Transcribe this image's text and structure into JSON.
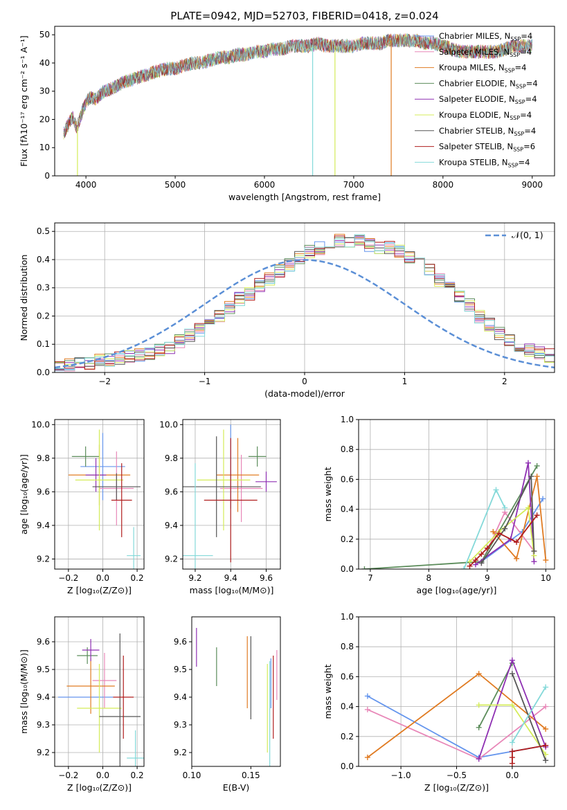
{
  "figure": {
    "title": "PLATE=0942, MJD=52703, FIBERID=0418, z=0.024"
  },
  "colors": {
    "Chabrier MILES": "#6495ed",
    "Salpeter MILES": "#e887b8",
    "Kroupa MILES": "#e07b22",
    "Chabrier ELODIE": "#5b8c5a",
    "Salpeter ELODIE": "#8e2fb2",
    "Kroupa ELODIE": "#d4ec58",
    "Chabrier STELIB": "#555555",
    "Salpeter STELIB": "#b01d1d",
    "Kroupa STELIB": "#84d9d9",
    "normal_curve": "#5b8fd6",
    "grid": "#b0b0b0"
  },
  "chart_data": [
    {
      "id": "spectrum",
      "type": "line",
      "xlabel": "wavelength [Angstrom, rest frame]",
      "ylabel": "Flux [fλ10⁻¹⁷ erg cm⁻² s⁻¹ A⁻¹]",
      "xlim": [
        3650,
        9250
      ],
      "ylim": [
        0,
        53
      ],
      "xticks": [
        4000,
        5000,
        6000,
        7000,
        8000,
        9000
      ],
      "yticks": [
        0,
        10,
        20,
        30,
        40,
        50
      ],
      "grid": false,
      "legend_position": "right",
      "x": [
        3750,
        3800,
        3850,
        3900,
        3950,
        4000,
        4050,
        4100,
        4200,
        4300,
        4400,
        4500,
        4600,
        4700,
        4800,
        4900,
        5000,
        5100,
        5200,
        5300,
        5400,
        5500,
        5600,
        5700,
        5800,
        5900,
        6000,
        6100,
        6200,
        6300,
        6400,
        6500,
        6600,
        6700,
        6800,
        6900,
        7000,
        7100,
        7200,
        7300,
        7400,
        7500,
        7600,
        7700,
        7800,
        7900,
        8000,
        8200,
        8400,
        8600,
        8800,
        9000
      ],
      "flux": [
        15,
        18,
        21,
        17,
        22,
        26,
        28,
        27,
        30,
        31,
        33,
        34,
        35,
        36,
        37,
        38,
        38,
        39,
        40,
        40,
        41,
        42,
        42,
        43,
        43,
        44,
        44,
        45,
        45,
        46,
        46,
        46,
        47,
        46,
        46,
        46,
        46,
        47,
        47,
        47,
        48,
        48,
        48,
        48,
        47,
        47,
        46,
        44,
        44,
        44,
        46,
        46
      ],
      "series": [
        {
          "name": "Chabrier MILES, N_SSP=4",
          "n_ssp": 4
        },
        {
          "name": "Salpeter MILES, N_SSP=4",
          "n_ssp": 4
        },
        {
          "name": "Kroupa MILES, N_SSP=4",
          "n_ssp": 4
        },
        {
          "name": "Chabrier ELODIE, N_SSP=4",
          "n_ssp": 4
        },
        {
          "name": "Salpeter ELODIE, N_SSP=4",
          "n_ssp": 4
        },
        {
          "name": "Kroupa ELODIE, N_SSP=4",
          "n_ssp": 4
        },
        {
          "name": "Chabrier STELIB, N_SSP=4",
          "n_ssp": 4
        },
        {
          "name": "Salpeter STELIB, N_SSP=6",
          "n_ssp": 6
        },
        {
          "name": "Kroupa STELIB, N_SSP=4",
          "n_ssp": 4
        }
      ]
    },
    {
      "id": "residuals",
      "type": "histogram",
      "xlabel": "(data-model)/error",
      "ylabel": "Normed distribution",
      "xlim": [
        -2.5,
        2.5
      ],
      "ylim": [
        0,
        0.53
      ],
      "xticks": [
        -2,
        -1,
        0,
        1,
        2
      ],
      "yticks": [
        0.0,
        0.1,
        0.2,
        0.3,
        0.4,
        0.5
      ],
      "grid": true,
      "legend": "𝒩(0, 1)",
      "legend_position": "top-right",
      "bin_width": 0.1,
      "bin_start": -2.5,
      "base_heights": [
        0.02,
        0.03,
        0.03,
        0.035,
        0.04,
        0.045,
        0.05,
        0.055,
        0.06,
        0.07,
        0.08,
        0.09,
        0.11,
        0.13,
        0.15,
        0.17,
        0.2,
        0.23,
        0.26,
        0.28,
        0.31,
        0.33,
        0.36,
        0.38,
        0.41,
        0.43,
        0.44,
        0.46,
        0.47,
        0.46,
        0.47,
        0.45,
        0.44,
        0.44,
        0.43,
        0.41,
        0.4,
        0.37,
        0.33,
        0.3,
        0.27,
        0.24,
        0.2,
        0.17,
        0.14,
        0.11,
        0.09,
        0.08,
        0.07,
        0.06,
        0.05,
        0.045,
        0.04,
        0.035,
        0.03,
        0.03,
        0.025,
        0.02,
        0.02,
        0.02
      ],
      "normal_curve": {
        "mu": 0,
        "sigma": 1
      }
    },
    {
      "id": "age_vs_Z",
      "type": "errorbar",
      "xlabel": "Z [log₁₀(Z/Z⊙)]",
      "ylabel": "age  [log₁₀(age/yr)]",
      "xlim": [
        -0.28,
        0.24
      ],
      "ylim": [
        9.14,
        10.03
      ],
      "xticks": [
        -0.2,
        0.0,
        0.2
      ],
      "yticks": [
        9.2,
        9.4,
        9.6,
        9.8,
        10.0
      ],
      "grid": true,
      "points": [
        {
          "series": "Chabrier MILES",
          "x": 0.0,
          "xerr": 0.13,
          "y": 9.75,
          "yerr": 0.2
        },
        {
          "series": "Salpeter MILES",
          "x": 0.08,
          "xerr": 0.1,
          "y": 9.62,
          "yerr": 0.22
        },
        {
          "series": "Kroupa MILES",
          "x": -0.02,
          "xerr": 0.18,
          "y": 9.7,
          "yerr": 0.18
        },
        {
          "series": "Chabrier ELODIE",
          "x": -0.1,
          "xerr": 0.08,
          "y": 9.81,
          "yerr": 0.06
        },
        {
          "series": "Salpeter ELODIE",
          "x": -0.04,
          "xerr": 0.06,
          "y": 9.7,
          "yerr": 0.1
        },
        {
          "series": "Kroupa ELODIE",
          "x": -0.02,
          "xerr": 0.14,
          "y": 9.67,
          "yerr": 0.3
        },
        {
          "series": "Chabrier STELIB",
          "x": 0.08,
          "xerr": 0.14,
          "y": 9.63,
          "yerr": 0.08
        },
        {
          "series": "Salpeter STELIB",
          "x": 0.11,
          "xerr": 0.06,
          "y": 9.55,
          "yerr": 0.22
        },
        {
          "series": "Kroupa STELIB",
          "x": 0.18,
          "xerr": 0.04,
          "y": 9.22,
          "yerr": 0.17
        }
      ]
    },
    {
      "id": "age_vs_mass",
      "type": "errorbar",
      "xlabel": "mass [log₁₀(M/M⊙)]",
      "ylabel": "",
      "xlim": [
        9.13,
        9.68
      ],
      "ylim": [
        9.14,
        10.03
      ],
      "xticks": [
        9.2,
        9.4,
        9.6
      ],
      "yticks": [
        9.2,
        9.4,
        9.6,
        9.8,
        10.0
      ],
      "grid": true,
      "points": [
        {
          "series": "Chabrier MILES",
          "x": 9.4,
          "xerr": 0.0,
          "y": 9.75,
          "yerr": 0.25
        },
        {
          "series": "Salpeter MILES",
          "x": 9.46,
          "xerr": 0.12,
          "y": 9.62,
          "yerr": 0.2
        },
        {
          "series": "Kroupa MILES",
          "x": 9.44,
          "xerr": 0.12,
          "y": 9.7,
          "yerr": 0.22
        },
        {
          "series": "Chabrier ELODIE",
          "x": 9.55,
          "xerr": 0.05,
          "y": 9.81,
          "yerr": 0.06
        },
        {
          "series": "Salpeter ELODIE",
          "x": 9.6,
          "xerr": 0.06,
          "y": 9.66,
          "yerr": 0.06
        },
        {
          "series": "Kroupa ELODIE",
          "x": 9.36,
          "xerr": 0.15,
          "y": 9.67,
          "yerr": 0.3
        },
        {
          "series": "Chabrier STELIB",
          "x": 9.32,
          "xerr": 0.25,
          "y": 9.63,
          "yerr": 0.3
        },
        {
          "series": "Salpeter STELIB",
          "x": 9.4,
          "xerr": 0.15,
          "y": 9.55,
          "yerr": 0.37
        },
        {
          "series": "Kroupa STELIB",
          "x": 9.2,
          "xerr": 0.1,
          "y": 9.22,
          "yerr": 0.55
        }
      ]
    },
    {
      "id": "weight_vs_age",
      "type": "line",
      "xlabel": "age  [log₁₀(age/yr)]",
      "ylabel": "mass weight",
      "xlim": [
        6.8,
        10.15
      ],
      "ylim": [
        0,
        1.0
      ],
      "xticks": [
        7,
        8,
        9,
        10
      ],
      "yticks": [
        0.0,
        0.2,
        0.4,
        0.6,
        0.8,
        1.0
      ],
      "grid": true,
      "series": [
        {
          "name": "Chabrier MILES",
          "x": [
            8.9,
            9.6,
            9.95
          ],
          "y": [
            0.05,
            0.25,
            0.47
          ]
        },
        {
          "name": "Salpeter MILES",
          "x": [
            8.9,
            9.3,
            9.8
          ],
          "y": [
            0.04,
            0.38,
            0.12
          ]
        },
        {
          "name": "Kroupa MILES",
          "x": [
            9.1,
            9.5,
            9.85,
            10.0
          ],
          "y": [
            0.25,
            0.07,
            0.62,
            0.06
          ]
        },
        {
          "name": "Chabrier ELODIE",
          "x": [
            6.9,
            8.9,
            9.85
          ],
          "y": [
            0.0,
            0.05,
            0.69
          ]
        },
        {
          "name": "Salpeter ELODIE",
          "x": [
            8.8,
            9.4,
            9.7,
            9.8
          ],
          "y": [
            0.03,
            0.2,
            0.71,
            0.05
          ]
        },
        {
          "name": "Kroupa ELODIE",
          "x": [
            8.7,
            9.2,
            9.7,
            9.8
          ],
          "y": [
            0.05,
            0.25,
            0.41,
            0.09
          ]
        },
        {
          "name": "Chabrier STELIB",
          "x": [
            8.9,
            9.3,
            9.75,
            9.8
          ],
          "y": [
            0.04,
            0.27,
            0.62,
            0.12
          ]
        },
        {
          "name": "Salpeter STELIB",
          "x": [
            8.7,
            8.8,
            8.9,
            9.0,
            9.2,
            9.5,
            9.85
          ],
          "y": [
            0.02,
            0.06,
            0.1,
            0.14,
            0.24,
            0.18,
            0.36
          ]
        },
        {
          "name": "Kroupa STELIB",
          "x": [
            8.6,
            9.15,
            9.3
          ],
          "y": [
            0.0,
            0.53,
            0.41
          ]
        }
      ]
    },
    {
      "id": "mass_vs_Z",
      "type": "errorbar",
      "xlabel": "Z [log₁₀(Z/Z⊙)]",
      "ylabel": "mass [log₁₀(M/M⊙)]",
      "xlim": [
        -0.28,
        0.24
      ],
      "ylim": [
        9.15,
        9.69
      ],
      "xticks": [
        -0.2,
        0.0,
        0.2
      ],
      "yticks": [
        9.2,
        9.3,
        9.4,
        9.5,
        9.6
      ],
      "grid": true,
      "points": [
        {
          "series": "Chabrier MILES",
          "x": -0.1,
          "xerr": 0.16,
          "y": 9.4,
          "yerr": 0.0
        },
        {
          "series": "Salpeter MILES",
          "x": 0.01,
          "xerr": 0.07,
          "y": 9.46,
          "yerr": 0.1
        },
        {
          "series": "Kroupa MILES",
          "x": -0.07,
          "xerr": 0.14,
          "y": 9.44,
          "yerr": 0.1
        },
        {
          "series": "Chabrier ELODIE",
          "x": -0.09,
          "xerr": 0.06,
          "y": 9.55,
          "yerr": 0.03
        },
        {
          "series": "Salpeter ELODIE",
          "x": -0.07,
          "xerr": 0.05,
          "y": 9.57,
          "yerr": 0.04
        },
        {
          "series": "Kroupa ELODIE",
          "x": -0.02,
          "xerr": 0.13,
          "y": 9.36,
          "yerr": 0.16
        },
        {
          "series": "Chabrier STELIB",
          "x": 0.1,
          "xerr": 0.12,
          "y": 9.33,
          "yerr": 0.3
        },
        {
          "series": "Salpeter STELIB",
          "x": 0.12,
          "xerr": 0.06,
          "y": 9.4,
          "yerr": 0.15
        },
        {
          "series": "Kroupa STELIB",
          "x": 0.19,
          "xerr": 0.05,
          "y": 9.18,
          "yerr": 0.1
        }
      ]
    },
    {
      "id": "mass_vs_EBV",
      "type": "errorbar",
      "xlabel": "E(B-V)",
      "ylabel": "",
      "xlim": [
        0.1,
        0.175
      ],
      "ylim": [
        9.15,
        9.69
      ],
      "xticks": [
        0.1,
        0.15
      ],
      "yticks": [
        9.2,
        9.3,
        9.4,
        9.5,
        9.6
      ],
      "grid": false,
      "points": [
        {
          "series": "Salpeter ELODIE",
          "x": 0.104,
          "xerr": 0,
          "y": 9.58,
          "yerr": 0.07
        },
        {
          "series": "Chabrier ELODIE",
          "x": 0.121,
          "xerr": 0,
          "y": 9.51,
          "yerr": 0.07
        },
        {
          "series": "Kroupa MILES",
          "x": 0.147,
          "xerr": 0,
          "y": 9.49,
          "yerr": 0.13
        },
        {
          "series": "Chabrier STELIB",
          "x": 0.15,
          "xerr": 0,
          "y": 9.47,
          "yerr": 0.15
        },
        {
          "series": "Kroupa ELODIE",
          "x": 0.164,
          "xerr": 0,
          "y": 9.36,
          "yerr": 0.16
        },
        {
          "series": "Kroupa STELIB",
          "x": 0.166,
          "xerr": 0,
          "y": 9.34,
          "yerr": 0.19
        },
        {
          "series": "Chabrier MILES",
          "x": 0.167,
          "xerr": 0,
          "y": 9.45,
          "yerr": 0.09
        },
        {
          "series": "Salpeter STELIB",
          "x": 0.169,
          "xerr": 0,
          "y": 9.4,
          "yerr": 0.15
        },
        {
          "series": "Salpeter MILES",
          "x": 0.172,
          "xerr": 0,
          "y": 9.48,
          "yerr": 0.09
        }
      ]
    },
    {
      "id": "weight_vs_Z",
      "type": "line",
      "xlabel": "Z [log₁₀(Z/Z⊙)]",
      "ylabel": "mass weight",
      "xlim": [
        -1.38,
        0.38
      ],
      "ylim": [
        0,
        1.0
      ],
      "xticks": [
        -1.0,
        -0.5,
        0.0
      ],
      "yticks": [
        0.0,
        0.2,
        0.4,
        0.6,
        0.8,
        1.0
      ],
      "grid": true,
      "series": [
        {
          "name": "Chabrier MILES",
          "x": [
            -1.3,
            -0.3,
            0.0,
            0.3
          ],
          "y": [
            0.47,
            0.06,
            0.1,
            0.14
          ]
        },
        {
          "name": "Salpeter MILES",
          "x": [
            -1.3,
            -0.3,
            0.3
          ],
          "y": [
            0.38,
            0.05,
            0.4
          ]
        },
        {
          "name": "Kroupa MILES",
          "x": [
            -1.3,
            -0.3,
            0.3
          ],
          "y": [
            0.06,
            0.62,
            0.25
          ]
        },
        {
          "name": "Chabrier ELODIE",
          "x": [
            -0.3,
            0.0
          ],
          "y": [
            0.26,
            0.69
          ]
        },
        {
          "name": "Salpeter ELODIE",
          "x": [
            -0.3,
            0.0,
            0.3
          ],
          "y": [
            0.05,
            0.71,
            0.13
          ]
        },
        {
          "name": "Kroupa ELODIE",
          "x": [
            -0.3,
            0.0,
            0.3
          ],
          "y": [
            0.41,
            0.41,
            0.08
          ]
        },
        {
          "name": "Chabrier STELIB",
          "x": [
            0.0,
            0.3
          ],
          "y": [
            0.62,
            0.04
          ]
        },
        {
          "name": "Salpeter STELIB",
          "x": [
            0.0,
            0.0,
            0.0,
            0.3
          ],
          "y": [
            0.02,
            0.06,
            0.1,
            0.14
          ]
        },
        {
          "name": "Kroupa STELIB",
          "x": [
            0.0,
            0.3
          ],
          "y": [
            0.16,
            0.53
          ]
        }
      ]
    }
  ]
}
